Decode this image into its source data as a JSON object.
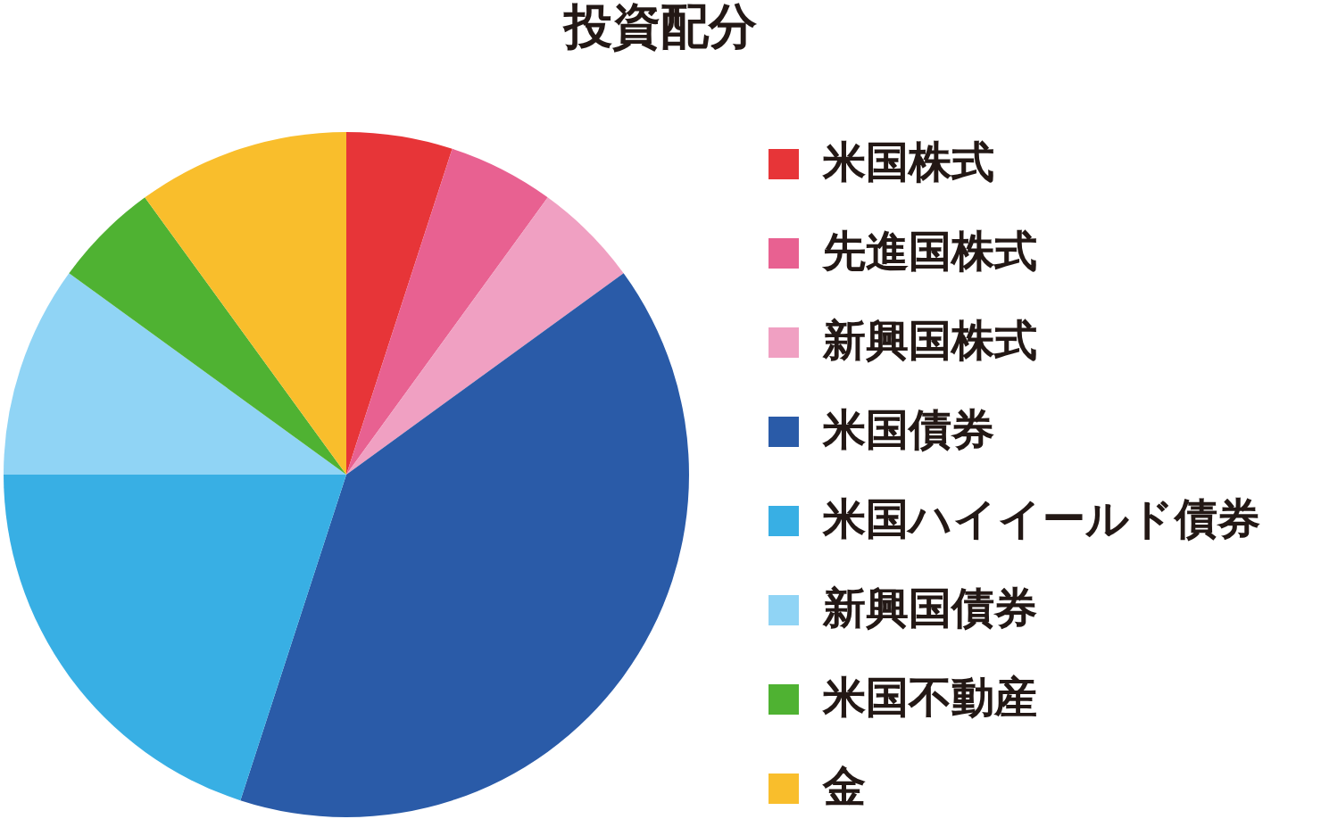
{
  "chart_data": {
    "type": "pie",
    "title": "投資配分",
    "categories": [
      "米国株式",
      "先進国株式",
      "新興国株式",
      "米国債券",
      "米国ハイイールド債券",
      "新興国債券",
      "米国不動産",
      "金"
    ],
    "values": [
      5,
      5,
      5,
      40,
      20,
      10,
      5,
      10
    ],
    "colors": [
      "#e73538",
      "#e86191",
      "#f0a0c2",
      "#2a5ba8",
      "#38afe4",
      "#90d4f5",
      "#4fb232",
      "#f9be2c"
    ],
    "legend": "right"
  }
}
